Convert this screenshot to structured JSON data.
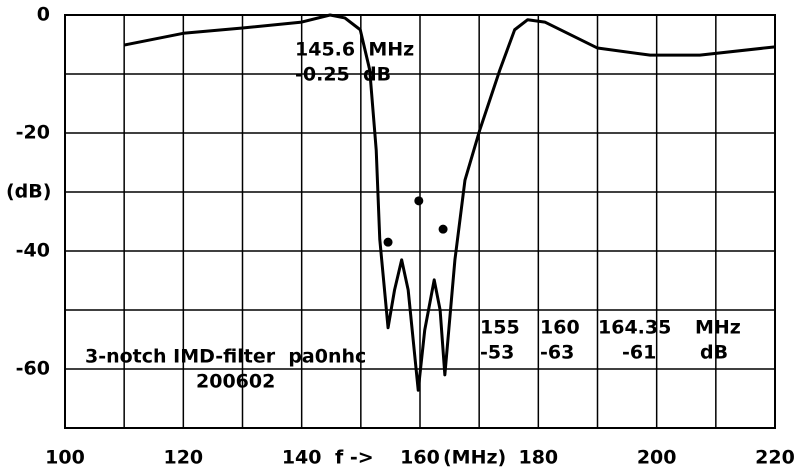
{
  "chart_data": {
    "type": "line",
    "x_label": "f ->",
    "x_unit": "(MHz)",
    "y_label": "(dB)",
    "xlim": [
      100,
      220
    ],
    "xticks": [
      100,
      120,
      140,
      160,
      180,
      200,
      220
    ],
    "xminor": [
      110,
      130,
      150,
      170,
      190,
      210
    ],
    "ylim": [
      -70,
      0
    ],
    "yticks": [
      0,
      -20,
      -40,
      -60
    ],
    "yminor": [
      -10,
      -30,
      -50
    ],
    "grid": true,
    "color": "#000000",
    "x": [
      110,
      120,
      130,
      140,
      144.8,
      147.3,
      149.9,
      151.5,
      152.6,
      153.2,
      154.6,
      155.7,
      156.9,
      158,
      159.7,
      160.8,
      162.4,
      163.4,
      164.2,
      165.9,
      167.6,
      170.1,
      173.5,
      176,
      178.2,
      181.1,
      190,
      198.9,
      207.3,
      220
    ],
    "values": [
      -5.1,
      -3.1,
      -2.2,
      -1.2,
      0,
      -0.5,
      -2.5,
      -9.3,
      -22.9,
      -38,
      -53,
      -46.6,
      -41.5,
      -46.6,
      -63.6,
      -53.4,
      -44.9,
      -50,
      -61,
      -41.5,
      -28,
      -19.5,
      -9.3,
      -2.5,
      -0.8,
      -1.2,
      -5.6,
      -6.8,
      -6.8,
      -5.4
    ],
    "markers": {
      "x": [
        154.6,
        159.8,
        163.9
      ],
      "values": [
        -38.5,
        -31.5,
        -36.3
      ]
    },
    "annotations": [
      "145.6  MHz",
      "-0.25  dB",
      "155",
      "160",
      "164.35",
      "MHz",
      "-53",
      "-63",
      "-61",
      "dB",
      "3-notch IMD-filter  pa0nhc",
      "200602"
    ]
  }
}
